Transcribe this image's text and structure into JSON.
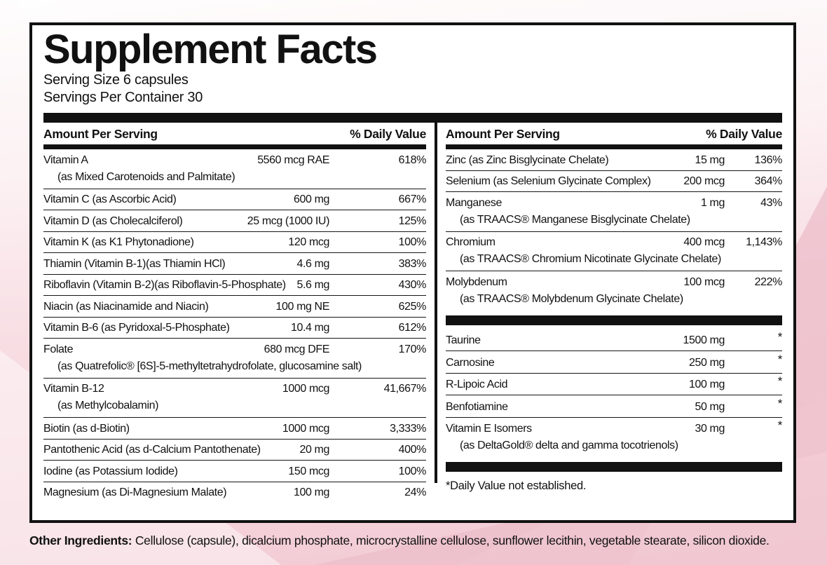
{
  "label": {
    "title": "Supplement Facts",
    "serving_size": "Serving Size 6 capsules",
    "servings_per_container": "Servings Per Container 30",
    "columns": {
      "left": {
        "header_amount": "Amount Per Serving",
        "header_dv": "% Daily Value",
        "rows": [
          {
            "name": "Vitamin A",
            "sub": "(as Mixed Carotenoids and Palmitate)",
            "amount": "5560 mcg RAE",
            "dv": "618%"
          },
          {
            "name": "Vitamin C (as Ascorbic Acid)",
            "amount": "600 mg",
            "dv": "667%"
          },
          {
            "name": "Vitamin D (as Cholecalciferol)",
            "amount": "25 mcg (1000 IU)",
            "dv": "125%"
          },
          {
            "name": "Vitamin K (as K1 Phytonadione)",
            "amount": "120 mcg",
            "dv": "100%"
          },
          {
            "name": "Thiamin (Vitamin B-1)(as Thiamin HCl)",
            "amount": "4.6 mg",
            "dv": "383%"
          },
          {
            "name": "Riboflavin (Vitamin B-2)(as Riboflavin-5-Phosphate)",
            "amount": "5.6 mg",
            "dv": "430%"
          },
          {
            "name": "Niacin (as Niacinamide and Niacin)",
            "amount": "100 mg NE",
            "dv": "625%"
          },
          {
            "name": "Vitamin B-6 (as Pyridoxal-5-Phosphate)",
            "amount": "10.4 mg",
            "dv": "612%"
          },
          {
            "name": "Folate",
            "sub": "(as Quatrefolic® [6S]-5-methyltetrahydrofolate, glucosamine salt)",
            "amount": "680 mcg DFE",
            "dv": "170%"
          },
          {
            "name": "Vitamin B-12",
            "sub": "(as Methylcobalamin)",
            "amount": "1000 mcg",
            "dv": "41,667%"
          },
          {
            "name": "Biotin (as d-Biotin)",
            "amount": "1000 mcg",
            "dv": "3,333%"
          },
          {
            "name": "Pantothenic Acid (as d-Calcium Pantothenate)",
            "amount": "20 mg",
            "dv": "400%"
          },
          {
            "name": "Iodine (as Potassium Iodide)",
            "amount": "150 mcg",
            "dv": "100%"
          },
          {
            "name": "Magnesium (as Di-Magnesium Malate)",
            "amount": "100 mg",
            "dv": "24%",
            "border": false
          }
        ]
      },
      "right": {
        "header_amount": "Amount Per Serving",
        "header_dv": "% Daily Value",
        "rows": [
          {
            "name": "Zinc (as Zinc Bisglycinate Chelate)",
            "amount": "15 mg",
            "dv": "136%"
          },
          {
            "name": "Selenium (as Selenium Glycinate Complex)",
            "amount": "200 mcg",
            "dv": "364%"
          },
          {
            "name": "Manganese",
            "sub": "(as TRAACS® Manganese Bisglycinate Chelate)",
            "amount": "1 mg",
            "dv": "43%"
          },
          {
            "name": "Chromium",
            "sub": "(as TRAACS® Chromium Nicotinate Glycinate Chelate)",
            "amount": "400 mcg",
            "dv": "1,143%"
          },
          {
            "name": "Molybdenum",
            "sub": "(as TRAACS® Molybdenum Glycinate Chelate)",
            "amount": "100 mcg",
            "dv": "222%",
            "border": false
          },
          {
            "type": "bar"
          },
          {
            "name": "Taurine",
            "amount": "1500 mg",
            "dv": "*"
          },
          {
            "name": "Carnosine",
            "amount": "250 mg",
            "dv": "*"
          },
          {
            "name": "R-Lipoic Acid",
            "amount": "100 mg",
            "dv": "*"
          },
          {
            "name": "Benfotiamine",
            "amount": "50 mg",
            "dv": "*"
          },
          {
            "name": "Vitamin E Isomers",
            "sub": "(as DeltaGold® delta and gamma tocotrienols)",
            "amount": "30 mg",
            "dv": "*",
            "border": false
          },
          {
            "type": "bar"
          },
          {
            "type": "note",
            "text": "*Daily Value not established."
          }
        ]
      }
    },
    "other_ingredients": {
      "label": "Other Ingredients:",
      "text": " Cellulose (capsule), dicalcium phosphate, microcrystalline cellulose, sunflower lecithin, vegetable stearate, silicon dioxide."
    },
    "colors": {
      "ink": "#111111",
      "panel_background": "#ffffff",
      "background_pink": "#f2cad4",
      "background_rose": "#ecbdc9"
    }
  }
}
